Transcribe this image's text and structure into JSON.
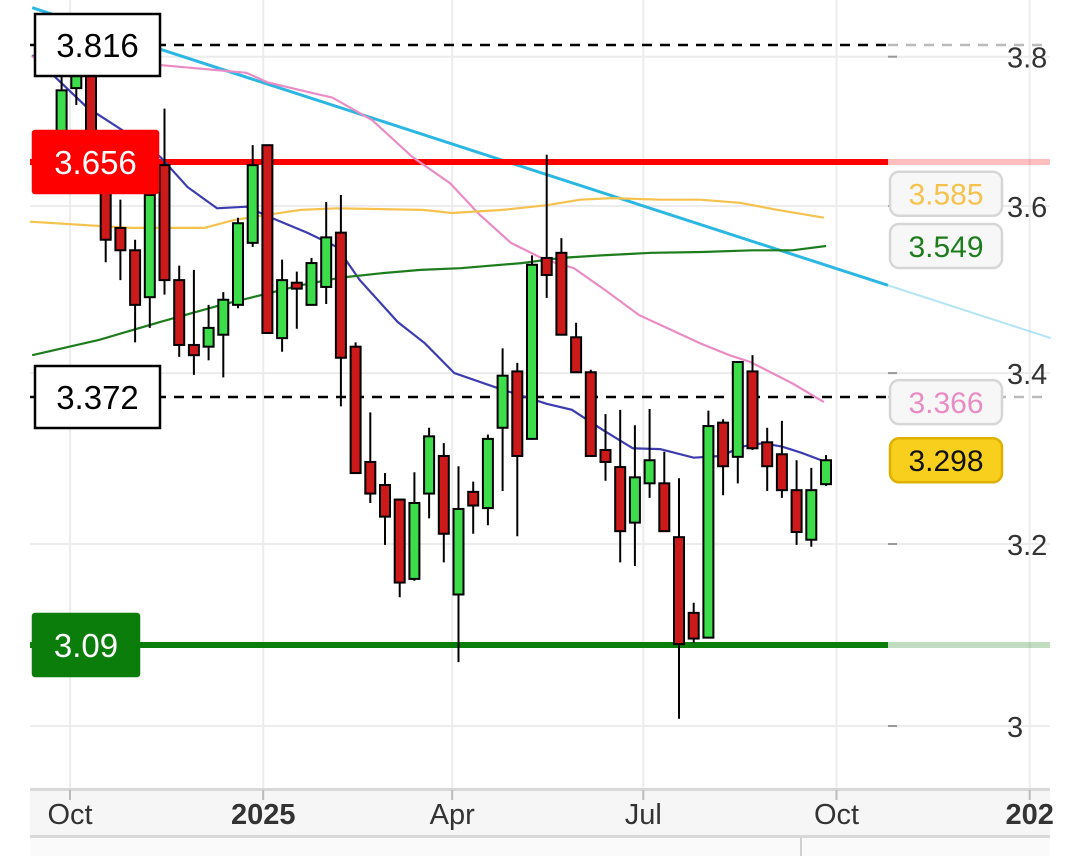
{
  "chart_data": {
    "type": "candlestick",
    "interval": "weekly",
    "title": "",
    "x_tick_labels": [
      {
        "date": "2024-10-01",
        "label": "Oct",
        "bold": false
      },
      {
        "date": "2025-01-01",
        "label": "2025",
        "bold": true
      },
      {
        "date": "2025-04-01",
        "label": "Apr",
        "bold": false
      },
      {
        "date": "2025-07-01",
        "label": "Jul",
        "bold": false
      },
      {
        "date": "2025-10-01",
        "label": "Oct",
        "bold": false
      },
      {
        "date": "2026-01-01",
        "label": "202",
        "bold": true
      }
    ],
    "y_ticks": [
      {
        "value": 3.8,
        "label": "3.8"
      },
      {
        "value": 3.6,
        "label": "3.6"
      },
      {
        "value": 3.4,
        "label": "3.4"
      },
      {
        "value": 3.2,
        "label": "3.2"
      },
      {
        "value": 3.0,
        "label": "3"
      }
    ],
    "ylim": [
      2.93,
      3.87
    ],
    "grid": true,
    "candle_fields": [
      "date",
      "open",
      "high",
      "low",
      "close"
    ],
    "candles": [
      [
        "2024-09-27",
        3.693,
        3.775,
        3.686,
        3.754
      ],
      [
        "2024-10-04",
        3.757,
        3.796,
        3.734,
        3.786
      ],
      [
        "2024-10-11",
        3.779,
        3.796,
        3.686,
        3.693
      ],
      [
        "2024-10-18",
        3.646,
        3.659,
        3.53,
        3.557
      ],
      [
        "2024-10-25",
        3.572,
        3.608,
        3.509,
        3.544
      ],
      [
        "2024-11-01",
        3.544,
        3.557,
        3.436,
        3.48
      ],
      [
        "2024-11-08",
        3.489,
        3.62,
        3.453,
        3.614
      ],
      [
        "2024-11-15",
        3.652,
        3.729,
        3.492,
        3.509
      ],
      [
        "2024-11-22",
        3.509,
        3.526,
        3.419,
        3.433
      ],
      [
        "2024-11-29",
        3.433,
        3.521,
        3.398,
        3.421
      ],
      [
        "2024-12-06",
        3.431,
        3.48,
        3.415,
        3.453
      ],
      [
        "2024-12-13",
        3.445,
        3.495,
        3.395,
        3.486
      ],
      [
        "2024-12-20",
        3.48,
        3.585,
        3.476,
        3.578
      ],
      [
        "2024-12-27",
        3.553,
        3.679,
        3.548,
        3.652
      ],
      [
        "2025-01-03",
        3.679,
        3.679,
        3.447,
        3.447
      ],
      [
        "2025-01-10",
        3.441,
        3.533,
        3.425,
        3.509
      ],
      [
        "2025-01-17",
        3.506,
        3.519,
        3.452,
        3.499
      ],
      [
        "2025-01-24",
        3.48,
        3.535,
        3.48,
        3.529
      ],
      [
        "2025-01-31",
        3.501,
        3.605,
        3.481,
        3.56
      ],
      [
        "2025-02-07",
        3.566,
        3.614,
        3.361,
        3.418
      ],
      [
        "2025-02-14",
        3.431,
        3.436,
        3.283,
        3.283
      ],
      [
        "2025-02-21",
        3.296,
        3.354,
        3.248,
        3.259
      ],
      [
        "2025-02-28",
        3.269,
        3.283,
        3.199,
        3.232
      ],
      [
        "2025-03-07",
        3.252,
        3.252,
        3.142,
        3.158
      ],
      [
        "2025-03-14",
        3.162,
        3.284,
        3.16,
        3.248
      ],
      [
        "2025-03-21",
        3.259,
        3.336,
        3.23,
        3.326
      ],
      [
        "2025-03-28",
        3.303,
        3.318,
        3.18,
        3.212
      ],
      [
        "2025-04-04",
        3.145,
        3.291,
        3.071,
        3.241
      ],
      [
        "2025-04-11",
        3.261,
        3.273,
        3.212,
        3.245
      ],
      [
        "2025-04-18",
        3.242,
        3.328,
        3.222,
        3.323
      ],
      [
        "2025-04-25",
        3.336,
        3.429,
        3.262,
        3.397
      ],
      [
        "2025-05-02",
        3.402,
        3.412,
        3.209,
        3.303
      ],
      [
        "2025-05-09",
        3.323,
        3.538,
        3.322,
        3.527
      ],
      [
        "2025-05-16",
        3.535,
        3.666,
        3.488,
        3.515
      ],
      [
        "2025-05-23",
        3.541,
        3.559,
        3.445,
        3.445
      ],
      [
        "2025-05-30",
        3.442,
        3.459,
        3.401,
        3.401
      ],
      [
        "2025-06-06",
        3.401,
        3.404,
        3.303,
        3.303
      ],
      [
        "2025-06-13",
        3.31,
        3.352,
        3.274,
        3.296
      ],
      [
        "2025-06-20",
        3.29,
        3.357,
        3.18,
        3.215
      ],
      [
        "2025-06-27",
        3.225,
        3.339,
        3.176,
        3.278
      ],
      [
        "2025-07-04",
        3.271,
        3.358,
        3.254,
        3.298
      ],
      [
        "2025-07-11",
        3.271,
        3.308,
        3.215,
        3.215
      ],
      [
        "2025-07-18",
        3.208,
        3.277,
        3.008,
        3.091
      ],
      [
        "2025-07-25",
        3.125,
        3.136,
        3.092,
        3.097
      ],
      [
        "2025-08-01",
        3.098,
        3.356,
        3.098,
        3.338
      ],
      [
        "2025-08-08",
        3.342,
        3.346,
        3.257,
        3.291
      ],
      [
        "2025-08-15",
        3.302,
        3.413,
        3.271,
        3.413
      ],
      [
        "2025-08-22",
        3.402,
        3.421,
        3.31,
        3.312
      ],
      [
        "2025-08-29",
        3.319,
        3.336,
        3.262,
        3.291
      ],
      [
        "2025-09-05",
        3.305,
        3.344,
        3.254,
        3.263
      ],
      [
        "2025-09-12",
        3.263,
        3.298,
        3.199,
        3.214
      ],
      [
        "2025-09-19",
        3.205,
        3.289,
        3.197,
        3.263
      ],
      [
        "2025-09-26",
        3.27,
        3.304,
        3.268,
        3.298
      ]
    ],
    "moving_averages": [
      {
        "color": "#3c3cb0",
        "points": [
          [
            "2024-09-13",
            3.802
          ],
          [
            "2024-10-09",
            3.731
          ],
          [
            "2024-10-31",
            3.69
          ],
          [
            "2024-11-13",
            3.663
          ],
          [
            "2024-11-26",
            3.624
          ],
          [
            "2024-12-10",
            3.597
          ],
          [
            "2024-12-24",
            3.599
          ],
          [
            "2025-01-04",
            3.586
          ],
          [
            "2025-01-22",
            3.566
          ],
          [
            "2025-02-05",
            3.548
          ],
          [
            "2025-02-16",
            3.509
          ],
          [
            "2025-03-06",
            3.46
          ],
          [
            "2025-03-19",
            3.435
          ],
          [
            "2025-04-02",
            3.4
          ],
          [
            "2025-04-22",
            3.383
          ],
          [
            "2025-05-16",
            3.364
          ],
          [
            "2025-05-28",
            3.357
          ],
          [
            "2025-06-12",
            3.333
          ],
          [
            "2025-06-26",
            3.312
          ],
          [
            "2025-07-09",
            3.311
          ],
          [
            "2025-07-25",
            3.301
          ],
          [
            "2025-08-07",
            3.303
          ],
          [
            "2025-08-17",
            3.314
          ],
          [
            "2025-08-27",
            3.318
          ],
          [
            "2025-09-05",
            3.314
          ],
          [
            "2025-09-14",
            3.307
          ],
          [
            "2025-09-26",
            3.296
          ]
        ]
      },
      {
        "color": "#ea8cc4",
        "last_label": "3.366",
        "points": [
          [
            "2024-09-13",
            3.8
          ],
          [
            "2024-11-11",
            3.789
          ],
          [
            "2024-12-24",
            3.778
          ],
          [
            "2025-01-03",
            3.765
          ],
          [
            "2025-01-25",
            3.75
          ],
          [
            "2025-02-03",
            3.744
          ],
          [
            "2025-02-22",
            3.713
          ],
          [
            "2025-03-13",
            3.663
          ],
          [
            "2025-03-31",
            3.629
          ],
          [
            "2025-04-14",
            3.589
          ],
          [
            "2025-04-29",
            3.553
          ],
          [
            "2025-05-15",
            3.533
          ],
          [
            "2025-05-29",
            3.523
          ],
          [
            "2025-06-13",
            3.497
          ],
          [
            "2025-06-29",
            3.468
          ],
          [
            "2025-07-14",
            3.451
          ],
          [
            "2025-07-28",
            3.435
          ],
          [
            "2025-08-11",
            3.421
          ],
          [
            "2025-08-21",
            3.413
          ],
          [
            "2025-09-10",
            3.388
          ],
          [
            "2025-09-25",
            3.366
          ]
        ]
      },
      {
        "color": "#f5c24e",
        "last_label": "3.585",
        "points": [
          [
            "2024-09-12",
            3.58
          ],
          [
            "2024-10-30",
            3.572
          ],
          [
            "2024-12-04",
            3.572
          ],
          [
            "2024-12-18",
            3.582
          ],
          [
            "2025-01-01",
            3.588
          ],
          [
            "2025-01-19",
            3.595
          ],
          [
            "2025-02-05",
            3.597
          ],
          [
            "2025-03-18",
            3.595
          ],
          [
            "2025-04-01",
            3.591
          ],
          [
            "2025-04-25",
            3.595
          ],
          [
            "2025-05-16",
            3.601
          ],
          [
            "2025-06-01",
            3.608
          ],
          [
            "2025-06-16",
            3.61
          ],
          [
            "2025-07-09",
            3.608
          ],
          [
            "2025-07-28",
            3.608
          ],
          [
            "2025-08-16",
            3.604
          ],
          [
            "2025-09-03",
            3.595
          ],
          [
            "2025-09-25",
            3.585
          ]
        ]
      },
      {
        "color": "#1d7d1d",
        "last_label": "3.549",
        "points": [
          [
            "2024-09-13",
            3.421
          ],
          [
            "2024-10-15",
            3.439
          ],
          [
            "2024-11-13",
            3.46
          ],
          [
            "2024-12-12",
            3.48
          ],
          [
            "2025-01-01",
            3.492
          ],
          [
            "2025-01-19",
            3.503
          ],
          [
            "2025-02-07",
            3.512
          ],
          [
            "2025-02-26",
            3.517
          ],
          [
            "2025-03-17",
            3.521
          ],
          [
            "2025-04-05",
            3.523
          ],
          [
            "2025-05-04",
            3.529
          ],
          [
            "2025-05-23",
            3.535
          ],
          [
            "2025-06-11",
            3.538
          ],
          [
            "2025-07-05",
            3.541
          ],
          [
            "2025-07-29",
            3.542
          ],
          [
            "2025-08-22",
            3.544
          ],
          [
            "2025-09-10",
            3.544
          ],
          [
            "2025-09-26",
            3.549
          ]
        ]
      }
    ],
    "trendline": {
      "color": "#2bb7e2",
      "from": [
        "2024-09-13",
        3.867
      ],
      "to": [
        "2026-01-11",
        3.441
      ]
    },
    "horizontal_lines": [
      {
        "value": 3.816,
        "label": "3.816",
        "style": "dashed",
        "color": "#000000",
        "label_bg": "#ffffff",
        "label_color": "#000000"
      },
      {
        "value": 3.656,
        "label": "3.656",
        "style": "solid",
        "color": "#ff0000",
        "label_bg": "#ff0000",
        "label_color": "#ffffff"
      },
      {
        "value": 3.372,
        "label": "3.372",
        "style": "dashed",
        "color": "#000000",
        "label_bg": "#ffffff",
        "label_color": "#000000"
      },
      {
        "value": 3.09,
        "label": "3.09",
        "style": "solid",
        "color": "#0a7d0a",
        "label_bg": "#0a7d0a",
        "label_color": "#ffffff"
      }
    ],
    "last_price": {
      "value": 3.298,
      "label": "3.298",
      "color": "#f7cf1c"
    },
    "colors": {
      "up": "#3ddc4a",
      "down": "#cc1a1a",
      "outline": "#000000"
    }
  }
}
